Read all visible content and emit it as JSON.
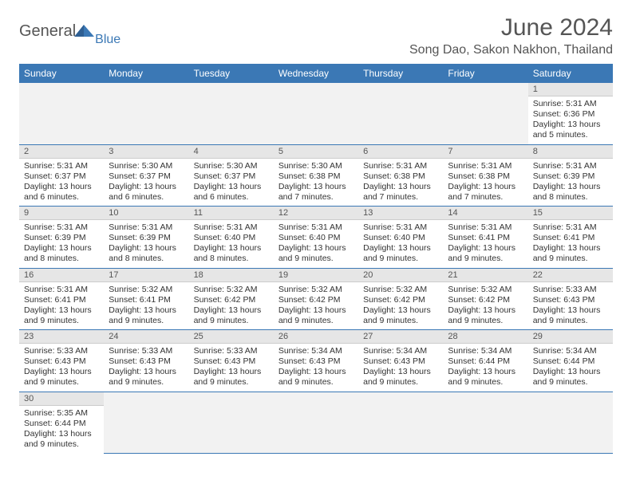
{
  "logo": {
    "text": "General",
    "sub": "Blue"
  },
  "title": "June 2024",
  "location": "Song Dao, Sakon Nakhon, Thailand",
  "colors": {
    "header_bg": "#3b78b5",
    "header_text": "#ffffff",
    "daynum_bg": "#e6e6e6",
    "blank_bg": "#f2f2f2",
    "row_border": "#3b78b5",
    "text": "#333333",
    "title_text": "#555555"
  },
  "weekdays": [
    "Sunday",
    "Monday",
    "Tuesday",
    "Wednesday",
    "Thursday",
    "Friday",
    "Saturday"
  ],
  "weeks": [
    [
      null,
      null,
      null,
      null,
      null,
      null,
      {
        "n": "1",
        "sr": "5:31 AM",
        "ss": "6:36 PM",
        "dl": "13 hours and 5 minutes."
      }
    ],
    [
      {
        "n": "2",
        "sr": "5:31 AM",
        "ss": "6:37 PM",
        "dl": "13 hours and 6 minutes."
      },
      {
        "n": "3",
        "sr": "5:30 AM",
        "ss": "6:37 PM",
        "dl": "13 hours and 6 minutes."
      },
      {
        "n": "4",
        "sr": "5:30 AM",
        "ss": "6:37 PM",
        "dl": "13 hours and 6 minutes."
      },
      {
        "n": "5",
        "sr": "5:30 AM",
        "ss": "6:38 PM",
        "dl": "13 hours and 7 minutes."
      },
      {
        "n": "6",
        "sr": "5:31 AM",
        "ss": "6:38 PM",
        "dl": "13 hours and 7 minutes."
      },
      {
        "n": "7",
        "sr": "5:31 AM",
        "ss": "6:38 PM",
        "dl": "13 hours and 7 minutes."
      },
      {
        "n": "8",
        "sr": "5:31 AM",
        "ss": "6:39 PM",
        "dl": "13 hours and 8 minutes."
      }
    ],
    [
      {
        "n": "9",
        "sr": "5:31 AM",
        "ss": "6:39 PM",
        "dl": "13 hours and 8 minutes."
      },
      {
        "n": "10",
        "sr": "5:31 AM",
        "ss": "6:39 PM",
        "dl": "13 hours and 8 minutes."
      },
      {
        "n": "11",
        "sr": "5:31 AM",
        "ss": "6:40 PM",
        "dl": "13 hours and 8 minutes."
      },
      {
        "n": "12",
        "sr": "5:31 AM",
        "ss": "6:40 PM",
        "dl": "13 hours and 9 minutes."
      },
      {
        "n": "13",
        "sr": "5:31 AM",
        "ss": "6:40 PM",
        "dl": "13 hours and 9 minutes."
      },
      {
        "n": "14",
        "sr": "5:31 AM",
        "ss": "6:41 PM",
        "dl": "13 hours and 9 minutes."
      },
      {
        "n": "15",
        "sr": "5:31 AM",
        "ss": "6:41 PM",
        "dl": "13 hours and 9 minutes."
      }
    ],
    [
      {
        "n": "16",
        "sr": "5:31 AM",
        "ss": "6:41 PM",
        "dl": "13 hours and 9 minutes."
      },
      {
        "n": "17",
        "sr": "5:32 AM",
        "ss": "6:41 PM",
        "dl": "13 hours and 9 minutes."
      },
      {
        "n": "18",
        "sr": "5:32 AM",
        "ss": "6:42 PM",
        "dl": "13 hours and 9 minutes."
      },
      {
        "n": "19",
        "sr": "5:32 AM",
        "ss": "6:42 PM",
        "dl": "13 hours and 9 minutes."
      },
      {
        "n": "20",
        "sr": "5:32 AM",
        "ss": "6:42 PM",
        "dl": "13 hours and 9 minutes."
      },
      {
        "n": "21",
        "sr": "5:32 AM",
        "ss": "6:42 PM",
        "dl": "13 hours and 9 minutes."
      },
      {
        "n": "22",
        "sr": "5:33 AM",
        "ss": "6:43 PM",
        "dl": "13 hours and 9 minutes."
      }
    ],
    [
      {
        "n": "23",
        "sr": "5:33 AM",
        "ss": "6:43 PM",
        "dl": "13 hours and 9 minutes."
      },
      {
        "n": "24",
        "sr": "5:33 AM",
        "ss": "6:43 PM",
        "dl": "13 hours and 9 minutes."
      },
      {
        "n": "25",
        "sr": "5:33 AM",
        "ss": "6:43 PM",
        "dl": "13 hours and 9 minutes."
      },
      {
        "n": "26",
        "sr": "5:34 AM",
        "ss": "6:43 PM",
        "dl": "13 hours and 9 minutes."
      },
      {
        "n": "27",
        "sr": "5:34 AM",
        "ss": "6:43 PM",
        "dl": "13 hours and 9 minutes."
      },
      {
        "n": "28",
        "sr": "5:34 AM",
        "ss": "6:44 PM",
        "dl": "13 hours and 9 minutes."
      },
      {
        "n": "29",
        "sr": "5:34 AM",
        "ss": "6:44 PM",
        "dl": "13 hours and 9 minutes."
      }
    ],
    [
      {
        "n": "30",
        "sr": "5:35 AM",
        "ss": "6:44 PM",
        "dl": "13 hours and 9 minutes."
      },
      null,
      null,
      null,
      null,
      null,
      null
    ]
  ],
  "labels": {
    "sunrise": "Sunrise:",
    "sunset": "Sunset:",
    "daylight": "Daylight:"
  }
}
